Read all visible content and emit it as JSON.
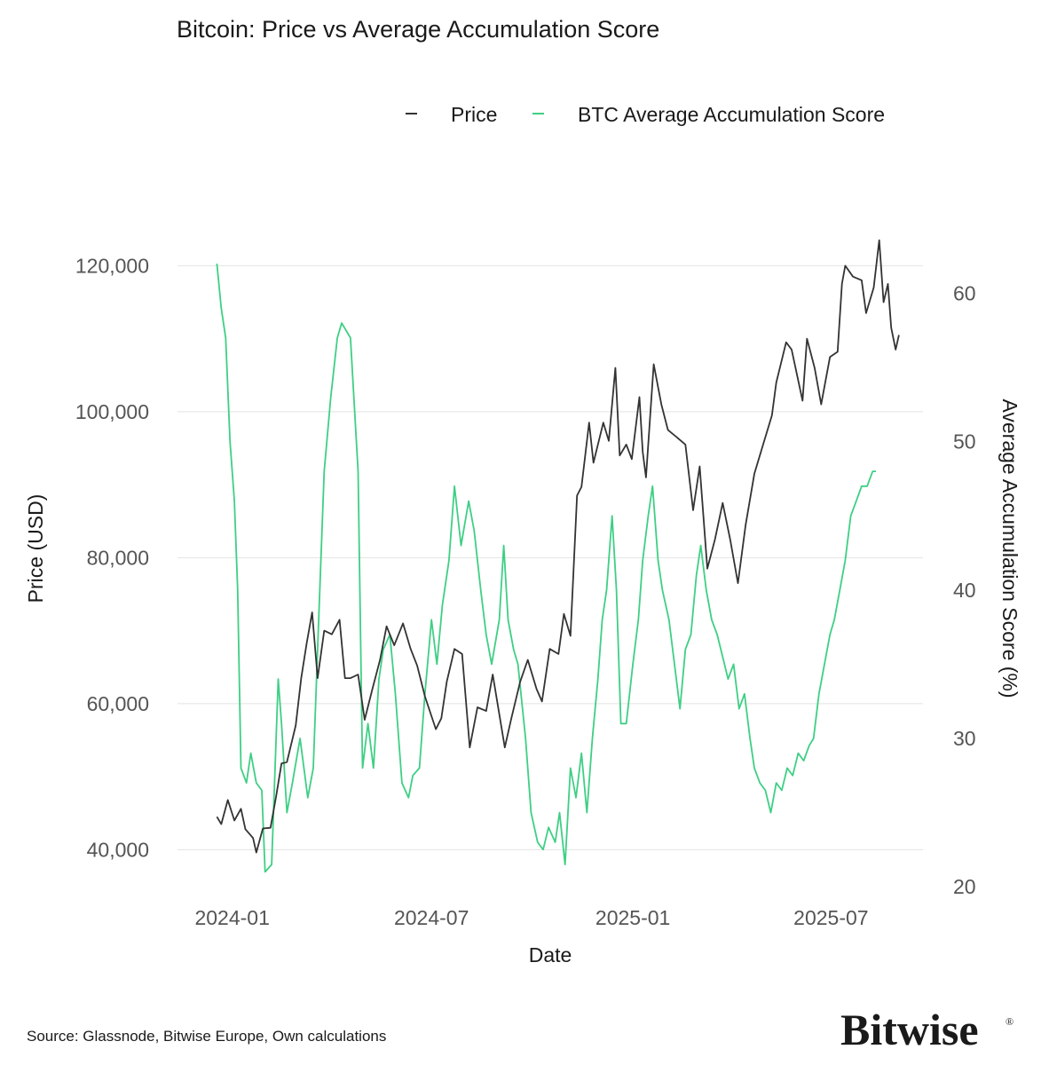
{
  "chart_data": {
    "type": "line",
    "title": "Bitcoin: Price vs Average Accumulation Score",
    "xlabel": "Date",
    "ylabel_left": "Price (USD)",
    "ylabel_right": "Average Accumulation Score (%)",
    "x_ticks": [
      "2024-01",
      "2024-07",
      "2025-01",
      "2025-07"
    ],
    "xlim": [
      "2023-11-12",
      "2025-09-23"
    ],
    "ylim_left": [
      33600,
      126000
    ],
    "ylim_right": [
      19.35,
      64.82
    ],
    "y_ticks_left": [
      "120,000",
      "100,000",
      "80,000",
      "60,000",
      "40,000"
    ],
    "y_ticks_right": [
      "60",
      "50",
      "40",
      "30",
      "20"
    ],
    "grid": "horizontal",
    "legend_position": "top-right",
    "series": [
      {
        "name": "Price",
        "axis": "left",
        "color": "#333333",
        "points": [
          [
            "2023-12-18",
            44500
          ],
          [
            "2023-12-22",
            43500
          ],
          [
            "2023-12-28",
            46800
          ],
          [
            "2024-01-03",
            44000
          ],
          [
            "2024-01-09",
            45600
          ],
          [
            "2024-01-13",
            42800
          ],
          [
            "2024-01-20",
            41600
          ],
          [
            "2024-01-23",
            39600
          ],
          [
            "2024-01-29",
            42900
          ],
          [
            "2024-02-05",
            43000
          ],
          [
            "2024-02-10",
            47200
          ],
          [
            "2024-02-15",
            51800
          ],
          [
            "2024-02-20",
            52000
          ],
          [
            "2024-02-28",
            57000
          ],
          [
            "2024-03-04",
            63500
          ],
          [
            "2024-03-09",
            68300
          ],
          [
            "2024-03-14",
            72500
          ],
          [
            "2024-03-19",
            63500
          ],
          [
            "2024-03-25",
            70000
          ],
          [
            "2024-04-01",
            69500
          ],
          [
            "2024-04-08",
            71500
          ],
          [
            "2024-04-13",
            63500
          ],
          [
            "2024-04-18",
            63500
          ],
          [
            "2024-04-25",
            64000
          ],
          [
            "2024-05-01",
            57800
          ],
          [
            "2024-05-08",
            62000
          ],
          [
            "2024-05-15",
            66000
          ],
          [
            "2024-05-21",
            70600
          ],
          [
            "2024-05-28",
            68000
          ],
          [
            "2024-06-05",
            71000
          ],
          [
            "2024-06-12",
            67500
          ],
          [
            "2024-06-18",
            65200
          ],
          [
            "2024-06-25",
            61000
          ],
          [
            "2024-07-05",
            56500
          ],
          [
            "2024-07-10",
            58000
          ],
          [
            "2024-07-15",
            63000
          ],
          [
            "2024-07-22",
            67500
          ],
          [
            "2024-07-29",
            66800
          ],
          [
            "2024-08-05",
            54000
          ],
          [
            "2024-08-12",
            59500
          ],
          [
            "2024-08-20",
            59000
          ],
          [
            "2024-08-26",
            64000
          ],
          [
            "2024-09-06",
            54000
          ],
          [
            "2024-09-12",
            58000
          ],
          [
            "2024-09-20",
            63000
          ],
          [
            "2024-09-27",
            66000
          ],
          [
            "2024-10-05",
            62000
          ],
          [
            "2024-10-10",
            60300
          ],
          [
            "2024-10-17",
            67500
          ],
          [
            "2024-10-25",
            66800
          ],
          [
            "2024-10-30",
            72300
          ],
          [
            "2024-11-05",
            69300
          ],
          [
            "2024-11-11",
            88500
          ],
          [
            "2024-11-15",
            89700
          ],
          [
            "2024-11-22",
            98500
          ],
          [
            "2024-11-26",
            93000
          ],
          [
            "2024-12-05",
            98500
          ],
          [
            "2024-12-10",
            96000
          ],
          [
            "2024-12-16",
            106000
          ],
          [
            "2024-12-20",
            94000
          ],
          [
            "2024-12-26",
            95500
          ],
          [
            "2024-12-31",
            93500
          ],
          [
            "2025-01-07",
            102000
          ],
          [
            "2025-01-10",
            94500
          ],
          [
            "2025-01-13",
            91000
          ],
          [
            "2025-01-20",
            106500
          ],
          [
            "2025-01-27",
            101000
          ],
          [
            "2025-02-02",
            97500
          ],
          [
            "2025-02-10",
            96500
          ],
          [
            "2025-02-18",
            95500
          ],
          [
            "2025-02-25",
            86500
          ],
          [
            "2025-03-03",
            92500
          ],
          [
            "2025-03-10",
            78500
          ],
          [
            "2025-03-17",
            82500
          ],
          [
            "2025-03-24",
            87500
          ],
          [
            "2025-03-31",
            82400
          ],
          [
            "2025-04-07",
            76500
          ],
          [
            "2025-04-14",
            84500
          ],
          [
            "2025-04-22",
            91500
          ],
          [
            "2025-04-28",
            94500
          ],
          [
            "2025-05-08",
            99500
          ],
          [
            "2025-05-12",
            104000
          ],
          [
            "2025-05-21",
            109500
          ],
          [
            "2025-05-26",
            108500
          ],
          [
            "2025-06-05",
            101500
          ],
          [
            "2025-06-09",
            110000
          ],
          [
            "2025-06-16",
            106000
          ],
          [
            "2025-06-22",
            101000
          ],
          [
            "2025-06-30",
            107500
          ],
          [
            "2025-07-07",
            108200
          ],
          [
            "2025-07-11",
            117500
          ],
          [
            "2025-07-14",
            120000
          ],
          [
            "2025-07-21",
            118500
          ],
          [
            "2025-07-29",
            118000
          ],
          [
            "2025-08-02",
            113500
          ],
          [
            "2025-08-09",
            117000
          ],
          [
            "2025-08-14",
            123500
          ],
          [
            "2025-08-18",
            115000
          ],
          [
            "2025-08-22",
            117500
          ],
          [
            "2025-08-25",
            111500
          ],
          [
            "2025-08-29",
            108500
          ],
          [
            "2025-09-01",
            110500
          ]
        ]
      },
      {
        "name": "BTC Average Accumulation Score",
        "axis": "right",
        "color": "#3ecf84",
        "points": [
          [
            "2023-12-18",
            62
          ],
          [
            "2023-12-22",
            59
          ],
          [
            "2023-12-26",
            57
          ],
          [
            "2023-12-30",
            50
          ],
          [
            "2024-01-03",
            46
          ],
          [
            "2024-01-06",
            40
          ],
          [
            "2024-01-09",
            28
          ],
          [
            "2024-01-14",
            27
          ],
          [
            "2024-01-18",
            29
          ],
          [
            "2024-01-23",
            27
          ],
          [
            "2024-01-28",
            26.5
          ],
          [
            "2024-01-31",
            21
          ],
          [
            "2024-02-06",
            21.5
          ],
          [
            "2024-02-12",
            34
          ],
          [
            "2024-02-15",
            31
          ],
          [
            "2024-02-20",
            25
          ],
          [
            "2024-02-25",
            27
          ],
          [
            "2024-03-03",
            30
          ],
          [
            "2024-03-10",
            26
          ],
          [
            "2024-03-15",
            28
          ],
          [
            "2024-03-20",
            38
          ],
          [
            "2024-03-25",
            48
          ],
          [
            "2024-03-31",
            53
          ],
          [
            "2024-04-06",
            57
          ],
          [
            "2024-04-10",
            58
          ],
          [
            "2024-04-18",
            57
          ],
          [
            "2024-04-25",
            48
          ],
          [
            "2024-04-29",
            28
          ],
          [
            "2024-05-04",
            31
          ],
          [
            "2024-05-09",
            28
          ],
          [
            "2024-05-14",
            34
          ],
          [
            "2024-05-18",
            36
          ],
          [
            "2024-05-24",
            37
          ],
          [
            "2024-05-29",
            33
          ],
          [
            "2024-06-04",
            27
          ],
          [
            "2024-06-10",
            26
          ],
          [
            "2024-06-14",
            27.5
          ],
          [
            "2024-06-20",
            28
          ],
          [
            "2024-06-25",
            33
          ],
          [
            "2024-07-01",
            38
          ],
          [
            "2024-07-06",
            35
          ],
          [
            "2024-07-11",
            39
          ],
          [
            "2024-07-17",
            42
          ],
          [
            "2024-07-22",
            47
          ],
          [
            "2024-07-28",
            43
          ],
          [
            "2024-08-04",
            46
          ],
          [
            "2024-08-09",
            44
          ],
          [
            "2024-08-15",
            40
          ],
          [
            "2024-08-20",
            37
          ],
          [
            "2024-08-25",
            35
          ],
          [
            "2024-09-01",
            38
          ],
          [
            "2024-09-05",
            43
          ],
          [
            "2024-09-09",
            38
          ],
          [
            "2024-09-14",
            36
          ],
          [
            "2024-09-18",
            35
          ],
          [
            "2024-09-25",
            30
          ],
          [
            "2024-09-30",
            25
          ],
          [
            "2024-10-06",
            23
          ],
          [
            "2024-10-11",
            22.5
          ],
          [
            "2024-10-16",
            24
          ],
          [
            "2024-10-22",
            23
          ],
          [
            "2024-10-26",
            25
          ],
          [
            "2024-10-31",
            21.5
          ],
          [
            "2024-11-05",
            28
          ],
          [
            "2024-11-10",
            26
          ],
          [
            "2024-11-15",
            29
          ],
          [
            "2024-11-20",
            25
          ],
          [
            "2024-11-25",
            30
          ],
          [
            "2024-11-30",
            34
          ],
          [
            "2024-12-04",
            38
          ],
          [
            "2024-12-08",
            40
          ],
          [
            "2024-12-13",
            45
          ],
          [
            "2024-12-17",
            40
          ],
          [
            "2024-12-21",
            31
          ],
          [
            "2024-12-26",
            31
          ],
          [
            "2025-01-01",
            35
          ],
          [
            "2025-01-06",
            38
          ],
          [
            "2025-01-10",
            42
          ],
          [
            "2025-01-15",
            45
          ],
          [
            "2025-01-19",
            47
          ],
          [
            "2025-01-24",
            42
          ],
          [
            "2025-01-28",
            40
          ],
          [
            "2025-02-03",
            38
          ],
          [
            "2025-02-08",
            35
          ],
          [
            "2025-02-13",
            32
          ],
          [
            "2025-02-18",
            36
          ],
          [
            "2025-02-23",
            37
          ],
          [
            "2025-02-28",
            41
          ],
          [
            "2025-03-04",
            43
          ],
          [
            "2025-03-09",
            40
          ],
          [
            "2025-03-14",
            38
          ],
          [
            "2025-03-19",
            37
          ],
          [
            "2025-03-24",
            35.5
          ],
          [
            "2025-03-29",
            34
          ],
          [
            "2025-04-03",
            35
          ],
          [
            "2025-04-08",
            32
          ],
          [
            "2025-04-13",
            33
          ],
          [
            "2025-04-18",
            30
          ],
          [
            "2025-04-22",
            28
          ],
          [
            "2025-04-27",
            27
          ],
          [
            "2025-05-02",
            26.5
          ],
          [
            "2025-05-07",
            25
          ],
          [
            "2025-05-12",
            27
          ],
          [
            "2025-05-17",
            26.5
          ],
          [
            "2025-05-22",
            28
          ],
          [
            "2025-05-27",
            27.5
          ],
          [
            "2025-06-01",
            29
          ],
          [
            "2025-06-06",
            28.5
          ],
          [
            "2025-06-11",
            29.5
          ],
          [
            "2025-06-15",
            30
          ],
          [
            "2025-06-20",
            33
          ],
          [
            "2025-06-25",
            35
          ],
          [
            "2025-06-30",
            37
          ],
          [
            "2025-07-04",
            38
          ],
          [
            "2025-07-09",
            40
          ],
          [
            "2025-07-14",
            42
          ],
          [
            "2025-07-19",
            45
          ],
          [
            "2025-07-24",
            46
          ],
          [
            "2025-07-29",
            47
          ],
          [
            "2025-08-03",
            47
          ],
          [
            "2025-08-08",
            48
          ],
          [
            "2025-08-11",
            48
          ]
        ]
      }
    ]
  },
  "source": "Source: Glassnode, Bitwise Europe, Own calculations",
  "brand": {
    "name": "Bitwise",
    "mark": "®"
  }
}
